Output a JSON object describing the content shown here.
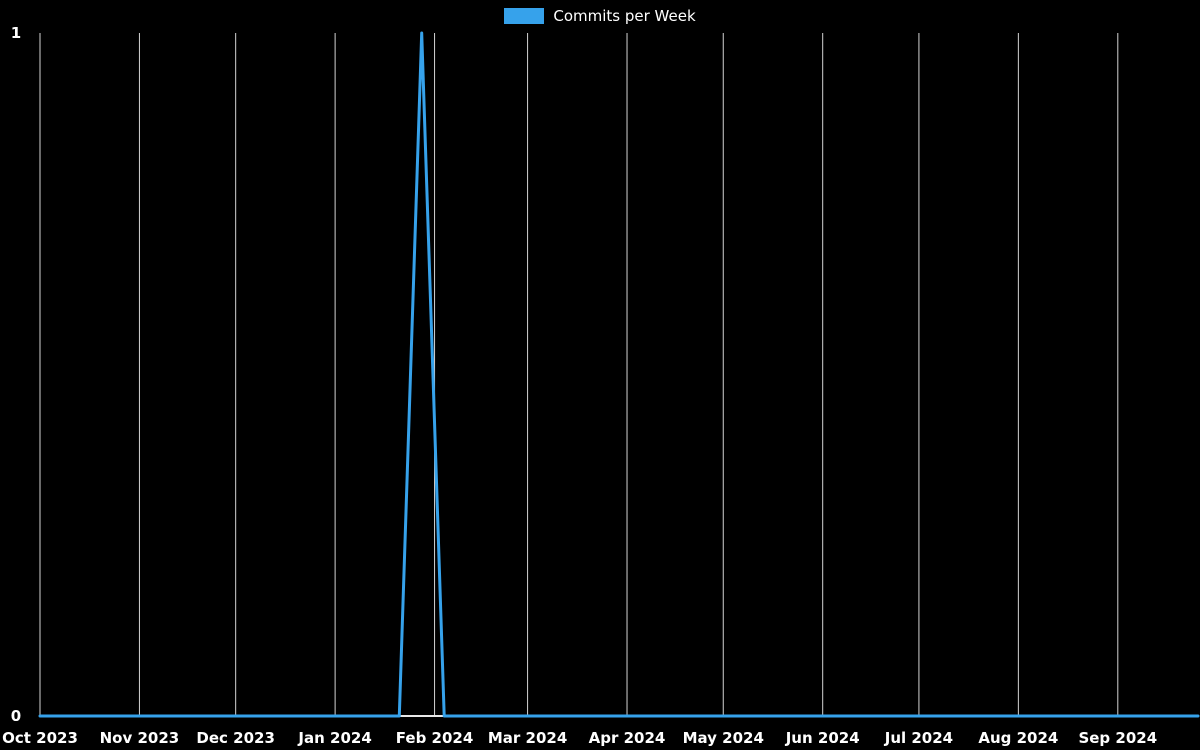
{
  "page": {
    "background": "#000000"
  },
  "chart_data": {
    "type": "line",
    "title": "Commits per Week",
    "legend": {
      "position": "top-center",
      "entries": [
        {
          "label": "Commits per Week",
          "color": "#36a2eb"
        }
      ]
    },
    "x_axis": {
      "scale": "time",
      "range": [
        "2023-10-01",
        "2024-09-26"
      ],
      "ticks": [
        {
          "date": "2023-10-01",
          "label": "Oct 2023"
        },
        {
          "date": "2023-11-01",
          "label": "Nov 2023"
        },
        {
          "date": "2023-12-01",
          "label": "Dec 2023"
        },
        {
          "date": "2024-01-01",
          "label": "Jan 2024"
        },
        {
          "date": "2024-02-01",
          "label": "Feb 2024"
        },
        {
          "date": "2024-03-01",
          "label": "Mar 2024"
        },
        {
          "date": "2024-04-01",
          "label": "Apr 2024"
        },
        {
          "date": "2024-05-01",
          "label": "May 2024"
        },
        {
          "date": "2024-06-01",
          "label": "Jun 2024"
        },
        {
          "date": "2024-07-01",
          "label": "Jul 2024"
        },
        {
          "date": "2024-08-01",
          "label": "Aug 2024"
        },
        {
          "date": "2024-09-01",
          "label": "Sep 2024"
        }
      ]
    },
    "y_axis": {
      "range": [
        0,
        1
      ],
      "ticks": [
        {
          "value": 0,
          "label": "0"
        },
        {
          "value": 1,
          "label": "1"
        }
      ]
    },
    "grid": {
      "vertical": true,
      "horizontal": false
    },
    "series": [
      {
        "name": "Commits per Week",
        "color": "#36a2eb",
        "points": [
          [
            "2023-10-01",
            0
          ],
          [
            "2024-01-21",
            0
          ],
          [
            "2024-01-28",
            1
          ],
          [
            "2024-02-04",
            0
          ],
          [
            "2024-09-26",
            0
          ]
        ]
      }
    ],
    "styles": {
      "background": "#000000",
      "grid_color": "#d4d4d4",
      "axis_color": "#e8e8e8",
      "text_color": "#ffffff",
      "line_width": 3
    }
  }
}
